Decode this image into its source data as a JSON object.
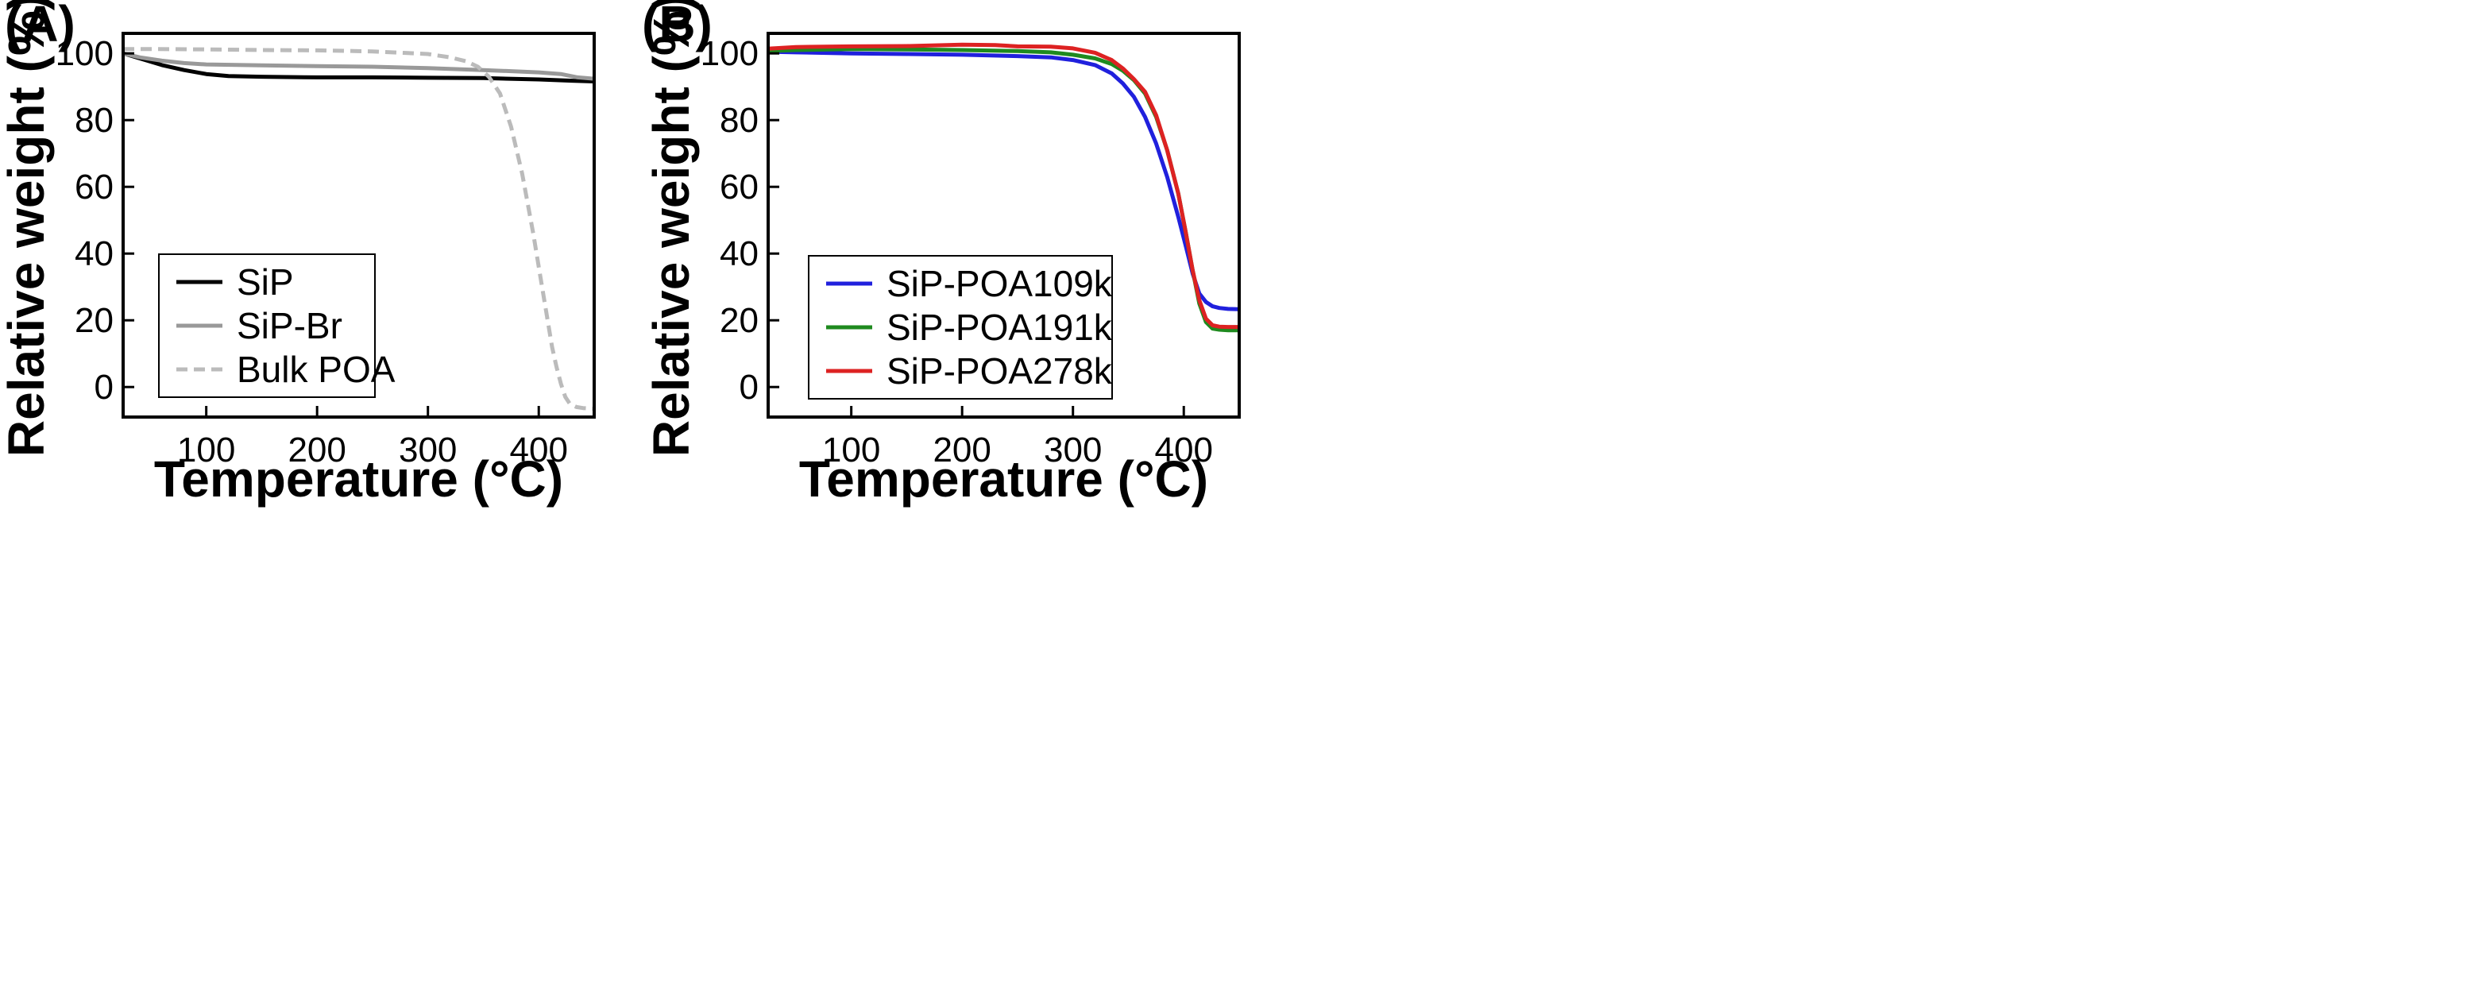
{
  "chart_data": [
    {
      "panel_label": "(A)",
      "type": "line",
      "xlabel": "Temperature (°C)",
      "ylabel": "Relative weight (%)",
      "xlim": [
        25,
        450
      ],
      "ylim": [
        -9,
        106
      ],
      "xticks": [
        100,
        200,
        300,
        400
      ],
      "yticks": [
        0,
        20,
        40,
        60,
        80,
        100
      ],
      "grid": false,
      "legend_position": "lower-left",
      "series": [
        {
          "name": "SiP",
          "color": "#000000",
          "dash": "solid",
          "x": [
            25,
            40,
            60,
            80,
            100,
            120,
            150,
            200,
            250,
            300,
            350,
            400,
            430,
            450
          ],
          "y": [
            100,
            98.5,
            96.5,
            95,
            93.8,
            93.2,
            93,
            92.8,
            92.8,
            92.7,
            92.6,
            92.2,
            91.8,
            91.6
          ]
        },
        {
          "name": "SiP-Br",
          "color": "#999999",
          "dash": "solid",
          "x": [
            25,
            40,
            60,
            80,
            100,
            150,
            200,
            250,
            300,
            350,
            400,
            420,
            435,
            450
          ],
          "y": [
            100,
            98.8,
            97.8,
            97.1,
            96.7,
            96.4,
            96.2,
            96,
            95.6,
            95,
            94.3,
            93.8,
            92.8,
            92.4
          ]
        },
        {
          "name": "Bulk POA",
          "color": "#bbbbbb",
          "dash": "dashed",
          "x": [
            25,
            50,
            100,
            150,
            200,
            250,
            300,
            320,
            335,
            345,
            355,
            365,
            375,
            385,
            395,
            402,
            408,
            412,
            416,
            420,
            424,
            428,
            434,
            440,
            450
          ],
          "y": [
            101.3,
            101.3,
            101.2,
            101,
            100.9,
            100.6,
            99.8,
            98.8,
            97.6,
            96,
            93,
            88,
            78,
            64,
            46,
            32,
            20,
            12,
            6,
            1,
            -3,
            -5,
            -6,
            -6.3,
            -6.5
          ]
        }
      ]
    },
    {
      "panel_label": "(B)",
      "type": "line",
      "xlabel": "Temperature (°C)",
      "ylabel": "Relative weight (%)",
      "xlim": [
        25,
        450
      ],
      "ylim": [
        -9,
        106
      ],
      "xticks": [
        100,
        200,
        300,
        400
      ],
      "yticks": [
        0,
        20,
        40,
        60,
        80,
        100
      ],
      "grid": false,
      "legend_position": "lower-left",
      "series": [
        {
          "name": "SiP-POA109k",
          "color": "#2020dd",
          "dash": "solid",
          "x": [
            25,
            50,
            100,
            150,
            200,
            250,
            280,
            300,
            320,
            335,
            345,
            355,
            365,
            375,
            385,
            395,
            402,
            408,
            414,
            420,
            426,
            432,
            440,
            450
          ],
          "y": [
            100.5,
            100.3,
            100,
            99.8,
            99.6,
            99.2,
            98.8,
            98,
            96.5,
            94,
            91,
            87,
            81,
            73,
            63,
            51,
            42,
            34,
            28,
            25.5,
            24.2,
            23.7,
            23.4,
            23.3
          ]
        },
        {
          "name": "SiP-POA191k",
          "color": "#1f8a1f",
          "dash": "solid",
          "x": [
            25,
            50,
            100,
            150,
            200,
            250,
            280,
            300,
            320,
            335,
            345,
            355,
            365,
            375,
            385,
            395,
            402,
            408,
            414,
            420,
            426,
            432,
            440,
            450
          ],
          "y": [
            100.7,
            101,
            101.3,
            101.2,
            101,
            100.7,
            100.3,
            99.6,
            98.5,
            96.8,
            94.8,
            92,
            88,
            81,
            71,
            58,
            46,
            35,
            25,
            19.5,
            17.5,
            17.2,
            17,
            17
          ]
        },
        {
          "name": "SiP-POA278k",
          "color": "#dd2222",
          "dash": "solid",
          "x": [
            25,
            50,
            100,
            150,
            200,
            230,
            250,
            280,
            300,
            320,
            335,
            345,
            355,
            365,
            375,
            385,
            395,
            402,
            408,
            414,
            420,
            426,
            432,
            440,
            450
          ],
          "y": [
            101.4,
            101.9,
            102.1,
            102.2,
            102.6,
            102.5,
            102.1,
            102,
            101.5,
            100.2,
            98,
            95.5,
            92.3,
            88.5,
            81.5,
            71,
            58,
            46,
            35,
            26,
            20.5,
            18.5,
            18.1,
            18,
            18
          ]
        }
      ]
    }
  ]
}
